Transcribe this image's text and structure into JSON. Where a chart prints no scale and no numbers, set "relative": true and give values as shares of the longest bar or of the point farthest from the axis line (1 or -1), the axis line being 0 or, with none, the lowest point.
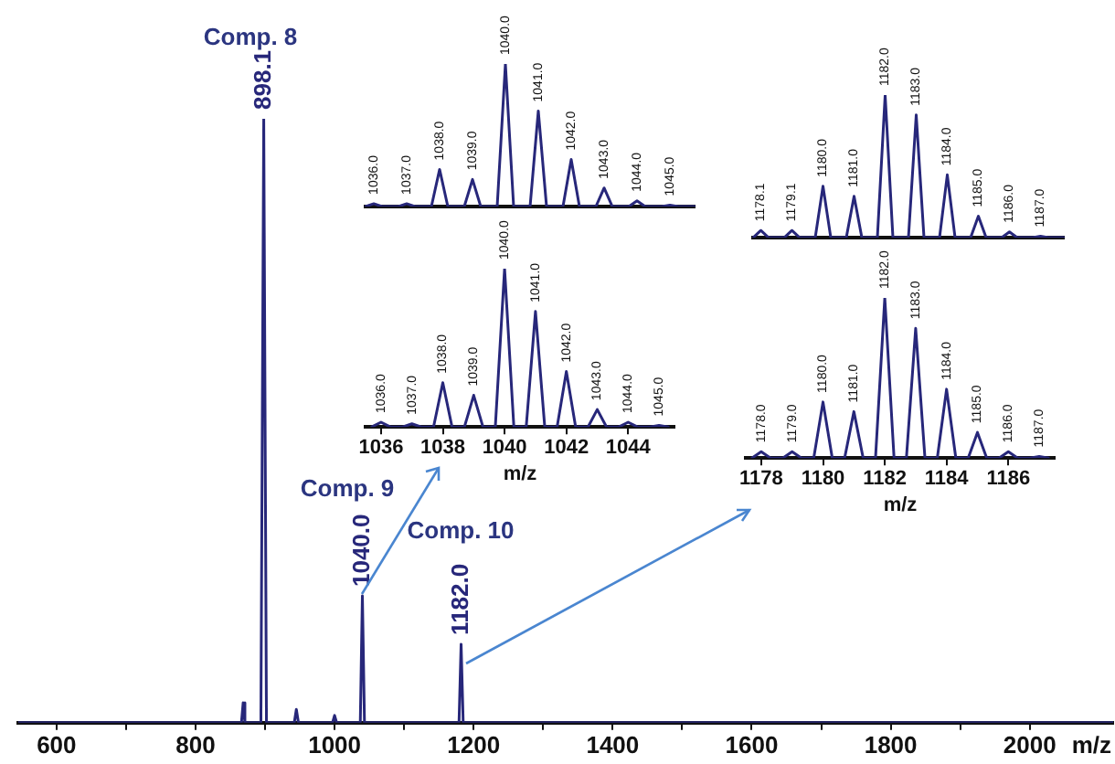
{
  "chart_data": [
    {
      "type": "line",
      "relative": true,
      "tick_labels": "x",
      "color": "#27277a",
      "xlabel": "m/z",
      "xlim": [
        545,
        2120
      ],
      "xticks": [
        600,
        {
          "value": 700,
          "label": null
        },
        800,
        {
          "value": 900,
          "label": null
        },
        1000,
        {
          "value": 1100,
          "label": null
        },
        1200,
        {
          "value": 1300,
          "label": null
        },
        1400,
        {
          "value": 1500,
          "label": null
        },
        1600,
        {
          "value": 1700,
          "label": null
        },
        1800,
        {
          "value": 1900,
          "label": null
        },
        2000
      ],
      "x": [
        545,
        866,
        868.5,
        871,
        894,
        898.1,
        902,
        942,
        945,
        948,
        997,
        1000,
        1003,
        1037,
        1040,
        1043,
        1179,
        1182,
        1185,
        2120
      ],
      "values": [
        0,
        0,
        0.033,
        0,
        0,
        1,
        0,
        0,
        0.022,
        0,
        0,
        0.012,
        0,
        0,
        0.21,
        0,
        0,
        0.13,
        0,
        0
      ],
      "annotations": [
        {
          "text": "898.1",
          "x": 898.1,
          "y": 1
        },
        {
          "text": "1040.0",
          "x": 1040,
          "y": 0.21
        },
        {
          "text": "1182.0",
          "x": 1182,
          "y": 0.13
        },
        "Comp. 8",
        "Comp. 9",
        "Comp. 10"
      ]
    },
    {
      "type": "line",
      "relative": true,
      "tick_labels": false,
      "color": "#27277a",
      "categories": [
        null,
        null,
        null,
        null,
        null,
        null,
        null,
        null,
        null,
        null,
        null,
        null,
        null,
        null,
        null,
        null,
        null,
        null,
        null,
        null,
        null,
        null,
        null,
        null,
        null,
        null,
        null,
        null,
        null,
        null,
        null,
        null,
        null,
        null,
        null,
        null,
        null,
        null,
        null,
        null,
        null
      ],
      "values": [
        0,
        0.02,
        0,
        0,
        0,
        0.02,
        0,
        0,
        0,
        0.26,
        0,
        0,
        0,
        0.19,
        0,
        0,
        0,
        1,
        0,
        0,
        0,
        0.67,
        0,
        0,
        0,
        0.33,
        0,
        0,
        0,
        0.13,
        0,
        0,
        0,
        0.04,
        0,
        0,
        0,
        0.01,
        0,
        0,
        0
      ],
      "annotations": [
        {
          "text": "1036.0",
          "y": 0.02
        },
        {
          "text": "1037.0",
          "y": 0.02
        },
        {
          "text": "1038.0",
          "y": 0.26
        },
        {
          "text": "1039.0",
          "y": 0.19
        },
        {
          "text": "1040.0",
          "y": 1
        },
        {
          "text": "1041.0",
          "y": 0.67
        },
        {
          "text": "1042.0",
          "y": 0.33
        },
        {
          "text": "1043.0",
          "y": 0.13
        },
        {
          "text": "1044.0",
          "y": 0.04
        },
        {
          "text": "1045.0",
          "y": 0.01
        }
      ]
    },
    {
      "type": "line",
      "relative": true,
      "tick_labels": "x",
      "color": "#27277a",
      "xlabel": "m/z",
      "xlim": [
        1035.5,
        1045.5
      ],
      "xticks": [
        1036,
        1038,
        1040,
        1042,
        1044
      ],
      "x": [
        1035.7,
        1036,
        1036.3,
        1036.7,
        1037,
        1037.3,
        1037.7,
        1038,
        1038.3,
        1038.7,
        1039,
        1039.3,
        1039.7,
        1040,
        1040.3,
        1040.7,
        1041,
        1041.3,
        1041.7,
        1042,
        1042.3,
        1042.7,
        1043,
        1043.3,
        1043.7,
        1044,
        1044.3,
        1044.7,
        1045,
        1045.3
      ],
      "values": [
        0,
        0.03,
        0,
        0,
        0.02,
        0,
        0,
        0.28,
        0,
        0,
        0.2,
        0,
        0,
        1,
        0,
        0,
        0.73,
        0,
        0,
        0.35,
        0,
        0,
        0.11,
        0,
        0,
        0.03,
        0,
        0,
        0.01,
        0
      ],
      "annotations": [
        {
          "text": "1036.0",
          "x": 1036,
          "y": 0.03
        },
        {
          "text": "1037.0",
          "x": 1037,
          "y": 0.02
        },
        {
          "text": "1038.0",
          "x": 1038,
          "y": 0.28
        },
        {
          "text": "1039.0",
          "x": 1039,
          "y": 0.2
        },
        {
          "text": "1040.0",
          "x": 1040,
          "y": 1
        },
        {
          "text": "1041.0",
          "x": 1041,
          "y": 0.73
        },
        {
          "text": "1042.0",
          "x": 1042,
          "y": 0.35
        },
        {
          "text": "1043.0",
          "x": 1043,
          "y": 0.11
        },
        {
          "text": "1044.0",
          "x": 1044,
          "y": 0.03
        },
        {
          "text": "1045.0",
          "x": 1045,
          "y": 0.01
        }
      ]
    },
    {
      "type": "line",
      "relative": true,
      "tick_labels": false,
      "color": "#27277a",
      "categories": [
        null,
        null,
        null,
        null,
        null,
        null,
        null,
        null,
        null,
        null,
        null,
        null,
        null,
        null,
        null,
        null,
        null,
        null,
        null,
        null,
        null,
        null,
        null,
        null,
        null,
        null,
        null,
        null,
        null,
        null,
        null,
        null,
        null,
        null,
        null,
        null,
        null,
        null,
        null,
        null,
        null
      ],
      "values": [
        0,
        0.05,
        0,
        0,
        0,
        0.05,
        0,
        0,
        0,
        0.36,
        0,
        0,
        0,
        0.29,
        0,
        0,
        0,
        1,
        0,
        0,
        0,
        0.86,
        0,
        0,
        0,
        0.44,
        0,
        0,
        0,
        0.15,
        0,
        0,
        0,
        0.04,
        0,
        0,
        0,
        0.01,
        0,
        0,
        0
      ],
      "annotations": [
        {
          "text": "1178.1",
          "y": 0.05
        },
        {
          "text": "1179.1",
          "y": 0.05
        },
        {
          "text": "1180.0",
          "y": 0.36
        },
        {
          "text": "1181.0",
          "y": 0.29
        },
        {
          "text": "1182.0",
          "y": 1
        },
        {
          "text": "1183.0",
          "y": 0.86
        },
        {
          "text": "1184.0",
          "y": 0.44
        },
        {
          "text": "1185.0",
          "y": 0.15
        },
        {
          "text": "1186.0",
          "y": 0.04
        },
        {
          "text": "1187.0",
          "y": 0.01
        }
      ]
    },
    {
      "type": "line",
      "relative": true,
      "tick_labels": "x",
      "color": "#27277a",
      "xlabel": "m/z",
      "xlim": [
        1177.5,
        1187.5
      ],
      "xticks": [
        1178,
        1180,
        1182,
        1184,
        1186
      ],
      "x": [
        1177.7,
        1178,
        1178.3,
        1178.7,
        1179,
        1179.3,
        1179.7,
        1180,
        1180.3,
        1180.7,
        1181,
        1181.3,
        1181.7,
        1182,
        1182.3,
        1182.7,
        1183,
        1183.3,
        1183.7,
        1184,
        1184.3,
        1184.7,
        1185,
        1185.3,
        1185.7,
        1186,
        1186.3,
        1186.7,
        1187,
        1187.3
      ],
      "values": [
        0,
        0.04,
        0,
        0,
        0.04,
        0,
        0,
        0.35,
        0,
        0,
        0.29,
        0,
        0,
        1,
        0,
        0,
        0.81,
        0,
        0,
        0.43,
        0,
        0,
        0.16,
        0,
        0,
        0.04,
        0,
        0,
        0.01,
        0
      ],
      "annotations": [
        {
          "text": "1178.0",
          "x": 1178,
          "y": 0.04
        },
        {
          "text": "1179.0",
          "x": 1179,
          "y": 0.04
        },
        {
          "text": "1180.0",
          "x": 1180,
          "y": 0.35
        },
        {
          "text": "1181.0",
          "x": 1181,
          "y": 0.29
        },
        {
          "text": "1182.0",
          "x": 1182,
          "y": 1
        },
        {
          "text": "1183.0",
          "x": 1183,
          "y": 0.81
        },
        {
          "text": "1184.0",
          "x": 1184,
          "y": 0.43
        },
        {
          "text": "1185.0",
          "x": 1185,
          "y": 0.16
        },
        {
          "text": "1186.0",
          "x": 1186,
          "y": 0.04
        },
        {
          "text": "1187.0",
          "x": 1187,
          "y": 0.01
        }
      ]
    }
  ]
}
